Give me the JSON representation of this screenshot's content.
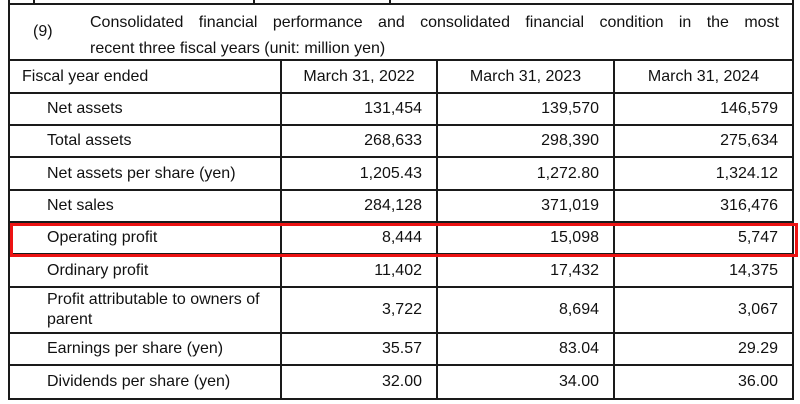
{
  "section": {
    "number": "(9)",
    "title_line1": "Consolidated financial performance and consolidated financial condition in the most",
    "title_line2": "recent three fiscal years (unit: million yen)"
  },
  "table": {
    "header": {
      "label": "Fiscal year ended",
      "columns": [
        "March 31, 2022",
        "March 31, 2023",
        "March 31, 2024"
      ]
    },
    "rows": [
      {
        "label": "Net assets",
        "values": [
          "131,454",
          "139,570",
          "146,579"
        ],
        "highlighted": false
      },
      {
        "label": "Total assets",
        "values": [
          "268,633",
          "298,390",
          "275,634"
        ],
        "highlighted": false
      },
      {
        "label": "Net assets per share (yen)",
        "values": [
          "1,205.43",
          "1,272.80",
          "1,324.12"
        ],
        "highlighted": false
      },
      {
        "label": "Net sales",
        "values": [
          "284,128",
          "371,019",
          "316,476"
        ],
        "highlighted": false
      },
      {
        "label": "Operating profit",
        "values": [
          "8,444",
          "15,098",
          "5,747"
        ],
        "highlighted": true
      },
      {
        "label": "Ordinary profit",
        "values": [
          "11,402",
          "17,432",
          "14,375"
        ],
        "highlighted": false
      },
      {
        "label": "Profit attributable to owners of parent",
        "values": [
          "3,722",
          "8,694",
          "3,067"
        ],
        "highlighted": false
      },
      {
        "label": "Earnings per share (yen)",
        "values": [
          "35.57",
          "83.04",
          "29.29"
        ],
        "highlighted": false
      },
      {
        "label": "Dividends per share (yen)",
        "values": [
          "32.00",
          "34.00",
          "36.00"
        ],
        "highlighted": false
      }
    ]
  },
  "colors": {
    "highlight_border": "#ec1313",
    "table_border": "#1a1a1a",
    "background": "#ffffff"
  }
}
